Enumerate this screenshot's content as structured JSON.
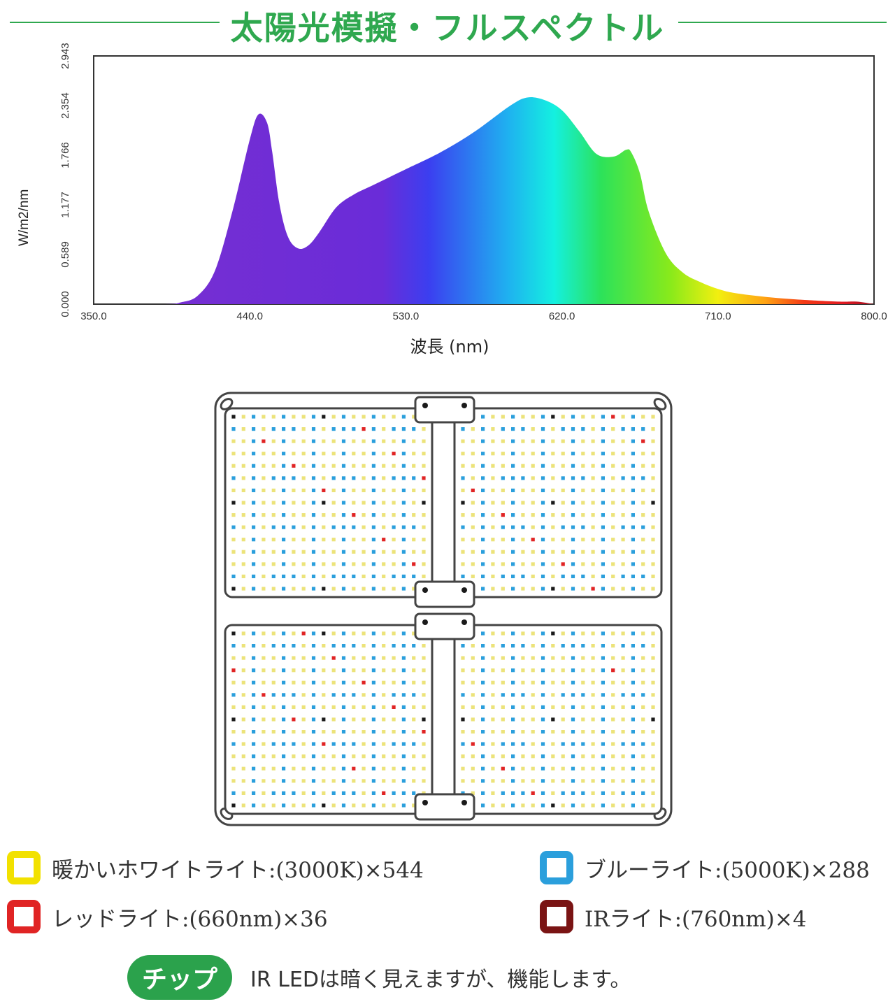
{
  "header": {
    "title": "太陽光模擬・フルスペクトル"
  },
  "chart_data": {
    "type": "area",
    "title": "",
    "xlabel": "波長 (nm)",
    "ylabel": "W/m2/nm",
    "xlim": [
      350,
      800
    ],
    "ylim": [
      0,
      2.943
    ],
    "x_ticks": [
      "350.0",
      "440.0",
      "530.0",
      "620.0",
      "710.0",
      "800.0"
    ],
    "y_ticks": [
      "0.000",
      "0.589",
      "1.177",
      "1.766",
      "2.354",
      "2.943"
    ],
    "grid": false,
    "fill": "visible-spectrum gradient (violet → blue → cyan → green → yellow → orange → red → dark red)",
    "series": [
      {
        "x": [
          350,
          390,
          400,
          410,
          420,
          430,
          440,
          445,
          450,
          453,
          457,
          462,
          468,
          474,
          480,
          490,
          500,
          510,
          520,
          530,
          550,
          570,
          590,
          600,
          610,
          620,
          630,
          640,
          650,
          657,
          660,
          665,
          670,
          680,
          690,
          700,
          710,
          720,
          740,
          760,
          780,
          790,
          800
        ],
        "y": [
          0.0,
          0.0,
          0.02,
          0.1,
          0.4,
          1.1,
          1.95,
          2.25,
          2.15,
          1.8,
          1.2,
          0.8,
          0.66,
          0.7,
          0.85,
          1.15,
          1.3,
          1.4,
          1.5,
          1.6,
          1.8,
          2.05,
          2.35,
          2.45,
          2.42,
          2.3,
          2.05,
          1.78,
          1.75,
          1.83,
          1.8,
          1.55,
          1.1,
          0.6,
          0.37,
          0.26,
          0.18,
          0.13,
          0.08,
          0.05,
          0.03,
          0.03,
          0.0
        ]
      }
    ]
  },
  "panel_diagram": {
    "led_colors": {
      "warm_white": "#ece37a",
      "blue": "#2b9fdc",
      "red": "#e02424",
      "ir": "#1a1a1a"
    }
  },
  "legend": {
    "items": [
      {
        "label": "暖かいホワイトライト:(3000K)×544",
        "color": "#f2e100"
      },
      {
        "label": "ブルーライト:(5000K)×288",
        "color": "#2b9fdc"
      },
      {
        "label": "レッドライト:(660nm)×36",
        "color": "#e02424"
      },
      {
        "label": "IRライト:(760nm)×4",
        "color": "#7a1414"
      }
    ]
  },
  "footer": {
    "chip_label": "チップ",
    "note": "IR LEDは暗く見えますが、機能します。"
  }
}
